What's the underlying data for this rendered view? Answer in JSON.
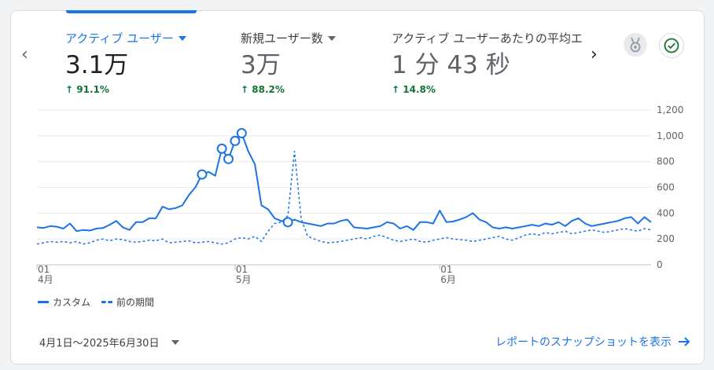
{
  "metrics": [
    {
      "label": "アクティブ ユーザー",
      "value": "3.1万",
      "delta": "91.1%",
      "active": true
    },
    {
      "label": "新規ユーザー数",
      "value": "3万",
      "delta": "88.2%",
      "active": false
    },
    {
      "label": "アクティブ ユーザーあたりの平均エ",
      "value": "1 分 43 秒",
      "delta": "14.8%",
      "active": false
    }
  ],
  "nav": {
    "prev": "‹",
    "next": "›"
  },
  "icons": {
    "medal": "medal-icon",
    "check": "check-circle-icon"
  },
  "legend": {
    "current": "カスタム",
    "previous": "前の期間"
  },
  "date_range": "4月1日～2025年6月30日",
  "report_link": "レポートのスナップショットを表示",
  "colors": {
    "accent": "#1a73e8",
    "positive": "#137333"
  },
  "chart_data": {
    "type": "line",
    "title": "",
    "xlabel": "",
    "ylabel": "",
    "ylim": [
      0,
      1200
    ],
    "y_ticks": [
      0,
      200,
      400,
      600,
      800,
      1000,
      1200
    ],
    "y_tick_labels": [
      "0",
      "200",
      "400",
      "600",
      "800",
      "1,000",
      "1,200"
    ],
    "x_ticks": [
      {
        "index": 0,
        "day": "01",
        "month": "4月"
      },
      {
        "index": 30,
        "day": "01",
        "month": "5月"
      },
      {
        "index": 61,
        "day": "01",
        "month": "6月"
      }
    ],
    "grid": true,
    "legend_position": "bottom-left",
    "series": [
      {
        "name": "カスタム",
        "style": "solid",
        "values": [
          290,
          285,
          300,
          295,
          280,
          320,
          260,
          270,
          265,
          280,
          285,
          310,
          340,
          290,
          270,
          330,
          330,
          360,
          360,
          450,
          430,
          440,
          460,
          540,
          600,
          700,
          720,
          690,
          900,
          820,
          960,
          1020,
          880,
          780,
          460,
          430,
          360,
          340,
          330,
          350,
          330,
          320,
          310,
          300,
          320,
          320,
          340,
          350,
          290,
          285,
          280,
          290,
          300,
          330,
          320,
          280,
          300,
          270,
          330,
          330,
          320,
          420,
          330,
          335,
          350,
          370,
          400,
          350,
          330,
          290,
          280,
          290,
          280,
          290,
          300,
          310,
          300,
          320,
          310,
          330,
          300,
          340,
          360,
          320,
          300,
          310,
          320,
          330,
          340,
          360,
          370,
          320,
          370,
          330
        ]
      },
      {
        "name": "前の期間",
        "style": "dashed",
        "values": [
          160,
          170,
          180,
          175,
          180,
          170,
          180,
          160,
          170,
          190,
          200,
          185,
          200,
          195,
          180,
          175,
          180,
          190,
          185,
          200,
          170,
          175,
          180,
          185,
          170,
          175,
          180,
          170,
          160,
          170,
          200,
          210,
          200,
          220,
          180,
          260,
          320,
          330,
          380,
          880,
          360,
          220,
          200,
          180,
          170,
          175,
          180,
          190,
          200,
          210,
          200,
          220,
          230,
          210,
          190,
          180,
          190,
          200,
          180,
          175,
          190,
          200,
          210,
          200,
          195,
          190,
          180,
          190,
          200,
          210,
          220,
          200,
          190,
          210,
          230,
          240,
          230,
          250,
          240,
          250,
          260,
          240,
          250,
          260,
          270,
          260,
          250,
          260,
          270,
          280,
          270,
          260,
          280,
          270
        ]
      }
    ],
    "markers_series": "カスタム",
    "marker_indices": [
      25,
      28,
      29,
      30,
      31,
      38
    ]
  }
}
